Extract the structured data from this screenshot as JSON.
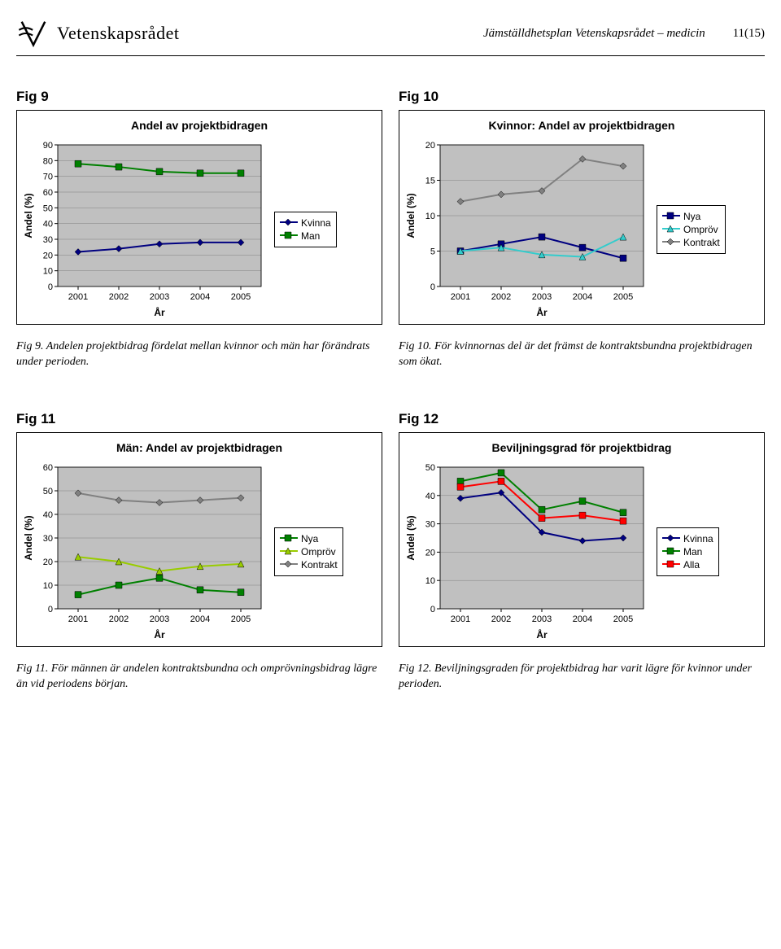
{
  "header": {
    "logo_text": "Vetenskapsrådet",
    "doc_title": "Jämställdhetsplan Vetenskapsrådet – medicin",
    "page_num": "11(15)"
  },
  "fig9": {
    "label": "Fig 9",
    "title": "Andel av projektbidragen",
    "ylabel": "Andel (%)",
    "xlabel": "År",
    "categories": [
      "2001",
      "2002",
      "2003",
      "2004",
      "2005"
    ],
    "ylim": [
      0,
      90
    ],
    "ytick_step": 10,
    "plot_bg": "#c0c0c0",
    "grid_color": "#808080",
    "series": [
      {
        "name": "Kvinna",
        "color": "#000080",
        "marker": "diamond",
        "values": [
          22,
          24,
          27,
          28,
          28
        ]
      },
      {
        "name": "Man",
        "color": "#008000",
        "marker": "square",
        "values": [
          78,
          76,
          73,
          72,
          72
        ]
      }
    ],
    "caption": "Fig 9. Andelen projektbidrag fördelat mellan kvinnor och män har förändrats under perioden."
  },
  "fig10": {
    "label": "Fig 10",
    "title": "Kvinnor: Andel av projektbidragen",
    "ylabel": "Andel (%)",
    "xlabel": "År",
    "categories": [
      "2001",
      "2002",
      "2003",
      "2004",
      "2005"
    ],
    "ylim": [
      0,
      20
    ],
    "ytick_step": 5,
    "plot_bg": "#c0c0c0",
    "grid_color": "#808080",
    "series": [
      {
        "name": "Nya",
        "color": "#000080",
        "marker": "square",
        "values": [
          5,
          6,
          7,
          5.5,
          4
        ]
      },
      {
        "name": "Ompröv",
        "color": "#33cccc",
        "marker": "triangle",
        "values": [
          5,
          5.5,
          4.5,
          4.2,
          7
        ]
      },
      {
        "name": "Kontrakt",
        "color": "#808080",
        "marker": "diamond",
        "values": [
          12,
          13,
          13.5,
          18,
          17
        ]
      }
    ],
    "caption": "Fig 10. För kvinnornas del är det främst de kontraktsbundna projektbidragen som ökat."
  },
  "fig11": {
    "label": "Fig 11",
    "title": "Män: Andel av projektbidragen",
    "ylabel": "Andel (%)",
    "xlabel": "År",
    "categories": [
      "2001",
      "2002",
      "2003",
      "2004",
      "2005"
    ],
    "ylim": [
      0,
      60
    ],
    "ytick_step": 10,
    "plot_bg": "#c0c0c0",
    "grid_color": "#808080",
    "series": [
      {
        "name": "Nya",
        "color": "#008000",
        "marker": "square",
        "values": [
          6,
          10,
          13,
          8,
          7
        ]
      },
      {
        "name": "Ompröv",
        "color": "#99cc00",
        "marker": "triangle",
        "values": [
          22,
          20,
          16,
          18,
          19
        ]
      },
      {
        "name": "Kontrakt",
        "color": "#808080",
        "marker": "diamond",
        "values": [
          49,
          46,
          45,
          46,
          47
        ]
      }
    ],
    "caption": "Fig 11. För männen är andelen kontraktsbundna och omprövningsbidrag lägre än vid periodens början."
  },
  "fig12": {
    "label": "Fig 12",
    "title": "Beviljningsgrad för projektbidrag",
    "ylabel": "Andel (%)",
    "xlabel": "År",
    "categories": [
      "2001",
      "2002",
      "2003",
      "2004",
      "2005"
    ],
    "ylim": [
      0,
      50
    ],
    "ytick_step": 10,
    "plot_bg": "#c0c0c0",
    "grid_color": "#808080",
    "series": [
      {
        "name": "Kvinna",
        "color": "#000080",
        "marker": "diamond",
        "values": [
          39,
          41,
          27,
          24,
          25
        ]
      },
      {
        "name": "Man",
        "color": "#008000",
        "marker": "square",
        "values": [
          45,
          48,
          35,
          38,
          34
        ]
      },
      {
        "name": "Alla",
        "color": "#ff0000",
        "marker": "square",
        "values": [
          43,
          45,
          32,
          33,
          31
        ]
      }
    ],
    "caption": "Fig 12. Beviljningsgraden för projektbidrag har varit lägre för kvinnor under perioden."
  }
}
